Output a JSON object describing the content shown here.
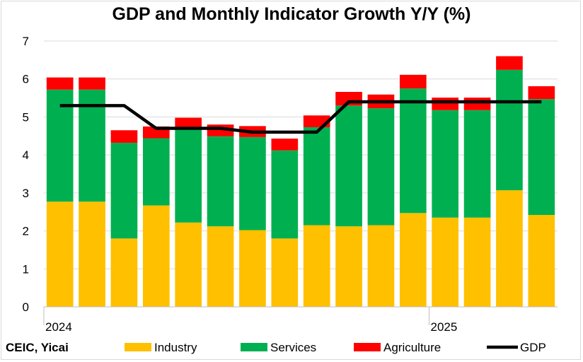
{
  "chart_data": {
    "type": "bar",
    "title": "GDP and Monthly Indicator Growth Y/Y (%)",
    "xlabel": "",
    "ylabel": "",
    "ylim": [
      0,
      7
    ],
    "yticks": [
      0,
      1,
      2,
      3,
      4,
      5,
      6,
      7
    ],
    "x_tick_labels": [
      {
        "index": 0,
        "label": "2024"
      },
      {
        "index": 12,
        "label": "2025"
      }
    ],
    "categories_count": 16,
    "series": [
      {
        "name": "Industry",
        "type": "stacked-bar",
        "color": "#FFC000",
        "values": [
          2.77,
          2.77,
          1.8,
          2.67,
          2.22,
          2.12,
          2.02,
          1.8,
          2.15,
          2.12,
          2.15,
          2.47,
          2.35,
          2.35,
          3.07,
          2.42
        ]
      },
      {
        "name": "Services",
        "type": "stacked-bar",
        "color": "#00B050",
        "values": [
          2.95,
          2.95,
          2.52,
          1.77,
          2.45,
          2.37,
          2.45,
          2.32,
          2.58,
          3.18,
          3.08,
          3.28,
          2.83,
          2.83,
          3.17,
          3.05
        ]
      },
      {
        "name": "Agriculture",
        "type": "stacked-bar",
        "color": "#FF0000",
        "values": [
          0.32,
          0.32,
          0.33,
          0.31,
          0.31,
          0.31,
          0.29,
          0.31,
          0.31,
          0.36,
          0.36,
          0.36,
          0.33,
          0.33,
          0.36,
          0.34
        ]
      },
      {
        "name": "GDP",
        "type": "line",
        "color": "#000000",
        "values": [
          5.3,
          5.3,
          5.3,
          4.7,
          4.7,
          4.7,
          4.6,
          4.6,
          4.6,
          5.4,
          5.4,
          5.4,
          5.4,
          5.4,
          5.4,
          5.4
        ]
      }
    ],
    "grid": true,
    "legend_position": "bottom"
  },
  "source": "CEIC, Yicai"
}
